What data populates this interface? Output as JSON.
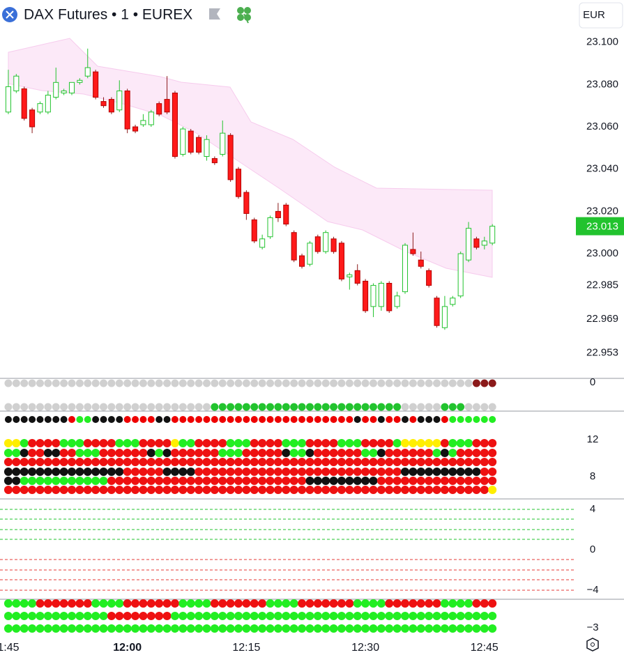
{
  "chart_data": {
    "type": "candlestick",
    "title": "DAX Futures • 1 • EUREX",
    "currency": "EUR",
    "last_price": 23.013,
    "open": [
      23.067,
      23.077,
      23.078,
      23.068,
      23.067,
      23.067,
      23.074,
      23.076,
      23.076,
      23.081,
      23.084,
      23.086,
      23.072,
      23.073,
      23.068,
      23.077,
      23.06,
      23.061,
      23.061,
      23.071,
      23.073,
      23.076,
      23.047,
      23.058,
      23.055,
      23.046,
      23.045,
      23.047,
      23.056,
      23.04,
      23.029,
      23.016,
      23.003,
      23.008,
      23.02,
      23.023,
      23.01,
      22.999,
      22.995,
      23.008,
      23.001,
      23.007,
      23.005,
      22.989,
      22.992,
      22.987,
      22.975,
      22.975,
      22.986,
      22.975,
      22.982,
      23.002,
      22.997,
      22.992,
      22.979,
      22.965,
      22.976,
      22.98,
      22.997,
      23.007,
      23.004,
      23.005
    ],
    "high": [
      23.087,
      23.085,
      23.079,
      23.069,
      23.072,
      23.077,
      23.088,
      23.078,
      23.081,
      23.083,
      23.097,
      23.087,
      23.074,
      23.074,
      23.082,
      23.078,
      23.061,
      23.066,
      23.068,
      23.072,
      23.084,
      23.077,
      23.06,
      23.059,
      23.056,
      23.056,
      23.046,
      23.063,
      23.057,
      23.041,
      23.03,
      23.017,
      23.009,
      23.018,
      23.024,
      23.024,
      23.011,
      23.0,
      23.006,
      23.009,
      23.011,
      23.008,
      23.006,
      22.991,
      22.995,
      22.988,
      22.986,
      22.987,
      22.987,
      22.982,
      23.005,
      23.01,
      23.001,
      22.993,
      22.98,
      22.98,
      22.98,
      23.001,
      23.015,
      23.008,
      23.008,
      23.014
    ],
    "low": [
      23.066,
      23.076,
      23.063,
      23.057,
      23.066,
      23.066,
      23.073,
      23.075,
      23.075,
      23.08,
      23.083,
      23.073,
      23.069,
      23.066,
      23.067,
      23.057,
      23.057,
      23.06,
      23.06,
      23.065,
      23.066,
      23.045,
      23.046,
      23.047,
      23.047,
      23.044,
      23.042,
      23.046,
      23.034,
      23.026,
      23.016,
      23.005,
      23.002,
      23.007,
      23.015,
      23.013,
      22.996,
      22.993,
      22.994,
      23.0,
      23.0,
      23.0,
      22.987,
      22.983,
      22.985,
      22.972,
      22.97,
      22.973,
      22.972,
      22.974,
      22.981,
      22.999,
      22.993,
      22.984,
      22.965,
      22.964,
      22.975,
      22.979,
      22.996,
      23.002,
      23.002,
      23.004
    ],
    "close": [
      23.079,
      23.084,
      23.064,
      23.06,
      23.071,
      23.075,
      23.081,
      23.077,
      23.081,
      23.082,
      23.088,
      23.074,
      23.07,
      23.067,
      23.077,
      23.059,
      23.058,
      23.063,
      23.067,
      23.066,
      23.067,
      23.046,
      23.059,
      23.048,
      23.048,
      23.054,
      23.043,
      23.057,
      23.035,
      23.027,
      23.019,
      23.006,
      23.007,
      23.017,
      23.017,
      23.014,
      22.997,
      22.994,
      23.005,
      23.001,
      23.01,
      23.001,
      22.988,
      22.99,
      22.986,
      22.973,
      22.985,
      22.986,
      22.973,
      22.98,
      23.004,
      23.0,
      22.994,
      22.985,
      22.966,
      22.975,
      22.979,
      23.0,
      23.012,
      23.003,
      23.006,
      23.013
    ],
    "ylim": [
      22.942,
      23.12
    ],
    "yticks": [
      {
        "value": 23.1,
        "label": "23.100"
      },
      {
        "value": 23.08,
        "label": "23.080"
      },
      {
        "value": 23.06,
        "label": "23.060"
      },
      {
        "value": 23.04,
        "label": "23.040"
      },
      {
        "value": 23.02,
        "label": "23.020"
      },
      {
        "value": 23.0,
        "label": "23.000"
      },
      {
        "value": 22.985,
        "label": "22.985"
      },
      {
        "value": 22.969,
        "label": "22.969"
      },
      {
        "value": 22.953,
        "label": "22.953"
      }
    ],
    "xlim": [
      -1.05,
      71.0
    ],
    "xticks": [
      {
        "value": 0,
        "label": "1:45"
      },
      {
        "value": 15,
        "label": "12:00"
      },
      {
        "value": 30,
        "label": "12:15"
      },
      {
        "value": 45,
        "label": "12:30"
      },
      {
        "value": 60,
        "label": "12:45"
      }
    ],
    "up_color": "#22c32e",
    "down_color": "#ff1a1a",
    "indicator_axis_labels": [
      "0",
      "12",
      "8",
      "4",
      "0",
      "−4",
      "−3"
    ]
  }
}
